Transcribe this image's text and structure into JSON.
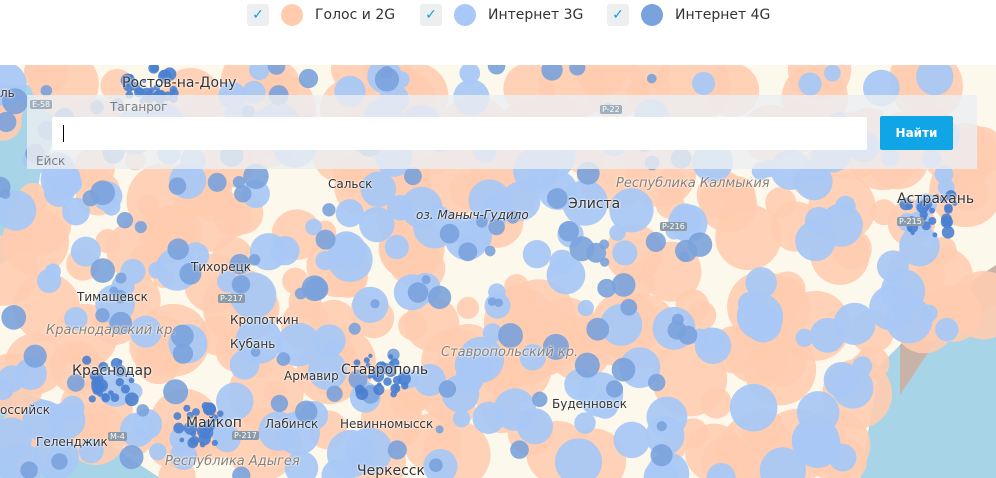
{
  "legend": [
    {
      "label": "Голос и 2G",
      "checked": true,
      "color": "#ffccb0"
    },
    {
      "label": "Интернет 3G",
      "checked": true,
      "color": "#a9c8f6"
    },
    {
      "label": "Интернет 4G",
      "checked": true,
      "color": "#7aa2dc"
    }
  ],
  "search": {
    "value": "",
    "button_label": "Найти"
  },
  "map": {
    "cities": [
      "Ростов-на-Дону",
      "Таганрог",
      "Ейск",
      "Сальск",
      "Элиста",
      "Астрахань",
      "Тихорецк",
      "Тимашевск",
      "Кропоткин",
      "Кубань",
      "Краснодар",
      "Армавир",
      "Ставрополь",
      "Буденновск",
      "Майкоп",
      "Лабинск",
      "Невинномысск",
      "Черкесск",
      "Геленджик",
      "оссийск",
      "оз. Маныч-Гудило",
      "ль"
    ],
    "regions": [
      "Республика Калмыкия",
      "Краснодарский кр.",
      "Ставропольский кр.",
      "Республика Адыгея"
    ],
    "roads": [
      "E-58",
      "P-22",
      "P-216",
      "P-217",
      "M-4",
      "P-215",
      "P-217"
    ]
  }
}
